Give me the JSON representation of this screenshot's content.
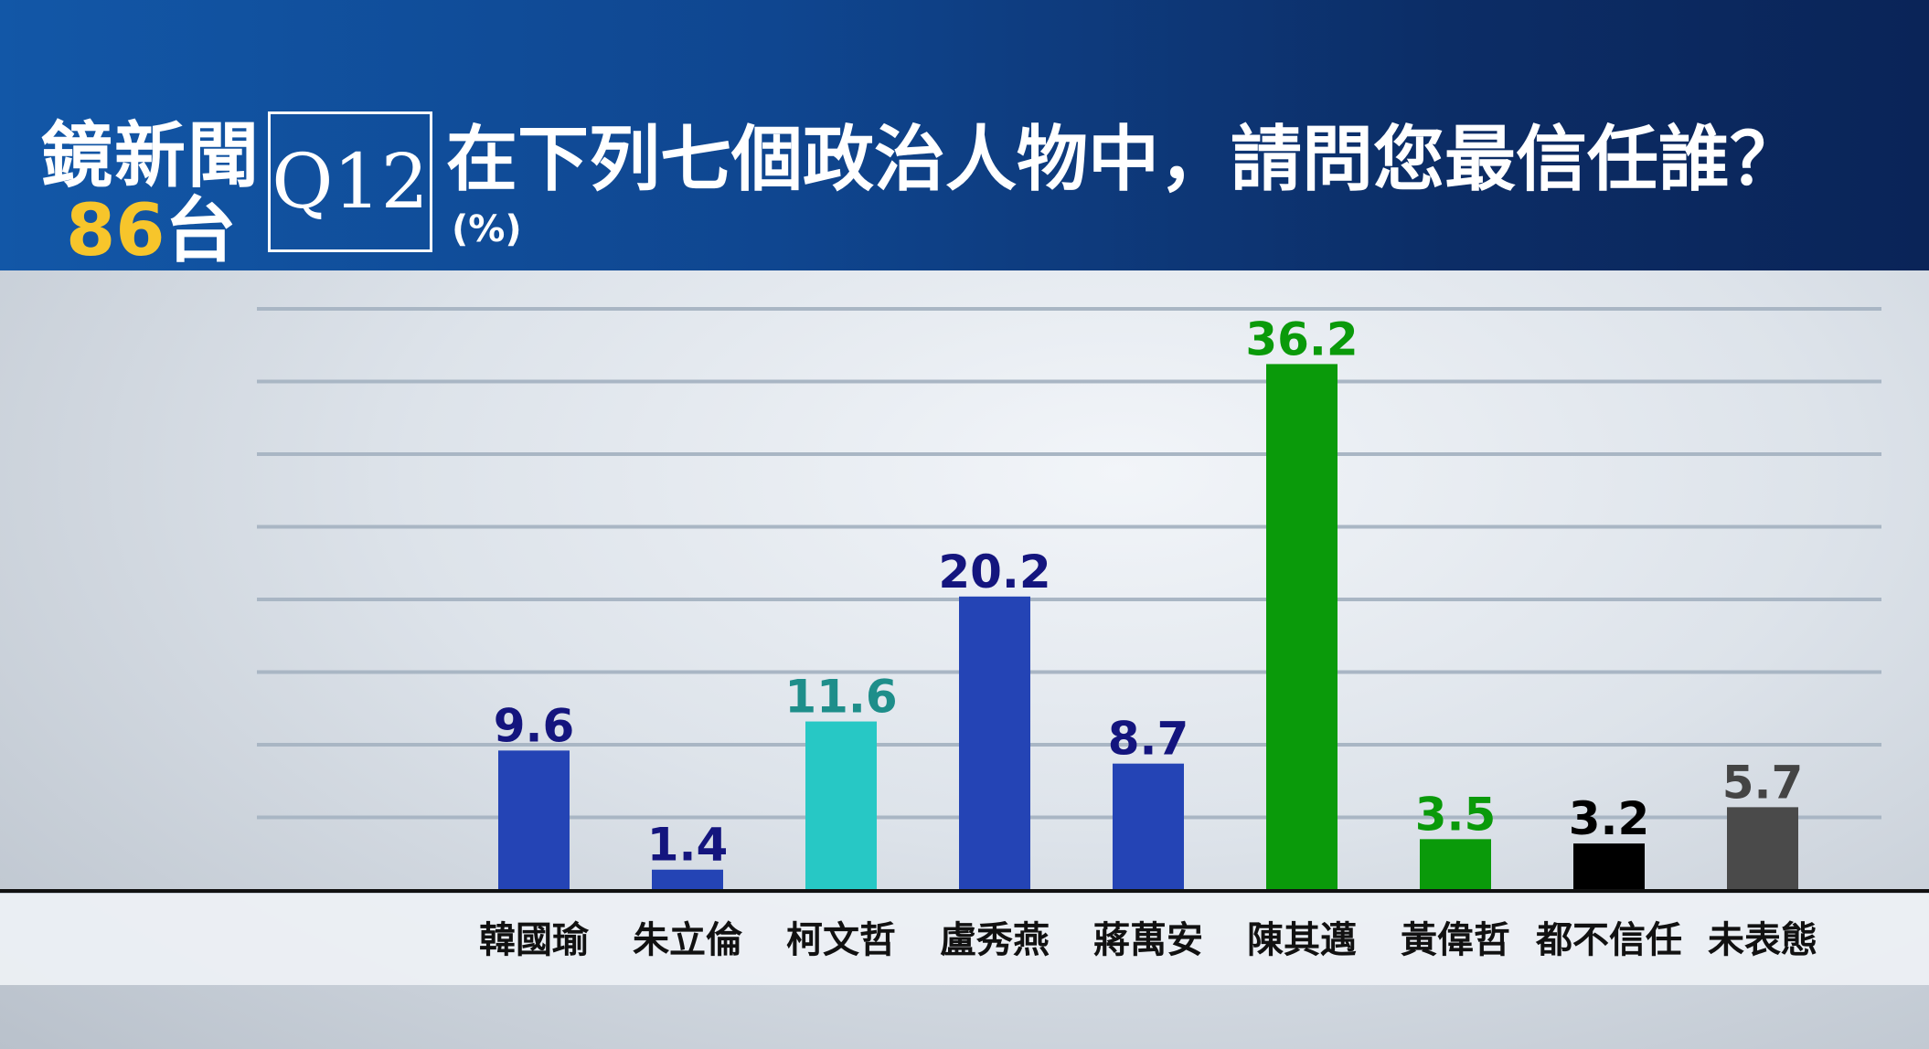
{
  "header": {
    "logo_line1": "鏡新聞",
    "logo_number": "86",
    "logo_suffix": "台",
    "question_number": "Q12",
    "question_text": "在下列七個政治人物中，請問您最信任誰？",
    "unit": "(%)"
  },
  "chart_data": {
    "type": "bar",
    "title": "在下列七個政治人物中，請問您最信任誰？",
    "unit": "(%)",
    "categories": [
      "韓國瑜",
      "朱立倫",
      "柯文哲",
      "盧秀燕",
      "蔣萬安",
      "陳其邁",
      "黃偉哲",
      "都不信任",
      "未表態"
    ],
    "values": [
      9.6,
      1.4,
      11.6,
      20.2,
      8.7,
      36.2,
      3.5,
      3.2,
      5.7
    ],
    "colors": [
      "#2444b5",
      "#2444b5",
      "#27c8c5",
      "#2444b5",
      "#2444b5",
      "#0a9a0a",
      "#0a9a0a",
      "#000000",
      "#4a4a4a"
    ],
    "label_colors": [
      "#14157e",
      "#14157e",
      "#1e8e8a",
      "#14157e",
      "#14157e",
      "#0a9a0a",
      "#0a9a0a",
      "#000000",
      "#444444"
    ],
    "ylim": [
      0,
      40
    ],
    "grid": true,
    "xlabel": "",
    "ylabel": ""
  }
}
